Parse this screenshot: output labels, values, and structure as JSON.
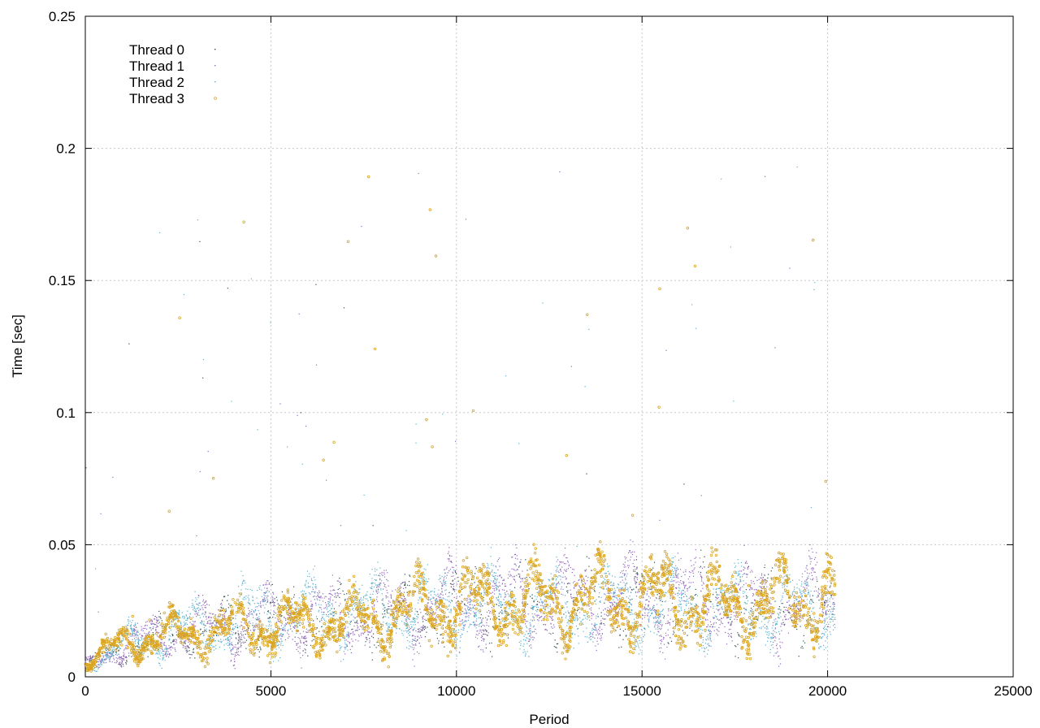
{
  "chart_data": {
    "type": "scatter",
    "title": "",
    "xlabel": "Period",
    "ylabel": "Time [sec]",
    "xlim": [
      0,
      25000
    ],
    "ylim": [
      0,
      0.25
    ],
    "xticks": [
      "0",
      "5000",
      "10000",
      "15000",
      "20000",
      "25000"
    ],
    "yticks": [
      "0",
      "0.05",
      "0.1",
      "0.15",
      "0.2",
      "0.25"
    ],
    "grid": true,
    "legend_position": "top-left",
    "series": [
      {
        "name": "Thread 0",
        "color": "#2f4f4f",
        "x": [
          0,
          1000,
          2500,
          5000,
          7500,
          10000,
          12500,
          15000,
          17500,
          20200
        ],
        "y": [
          0.004,
          0.011,
          0.016,
          0.021,
          0.022,
          0.026,
          0.027,
          0.028,
          0.027,
          0.025
        ]
      },
      {
        "name": "Thread 1",
        "color": "#9467bd",
        "x": [
          0,
          1000,
          2500,
          5000,
          7500,
          10000,
          12500,
          15000,
          17500,
          20200
        ],
        "y": [
          0.004,
          0.012,
          0.017,
          0.022,
          0.024,
          0.028,
          0.03,
          0.03,
          0.029,
          0.027
        ]
      },
      {
        "name": "Thread 2",
        "color": "#5bb2cf",
        "x": [
          0,
          1000,
          2500,
          5000,
          7500,
          10000,
          12500,
          15000,
          17500,
          20200
        ],
        "y": [
          0.004,
          0.012,
          0.018,
          0.024,
          0.025,
          0.027,
          0.026,
          0.027,
          0.026,
          0.025
        ]
      },
      {
        "name": "Thread 3",
        "color": "#daa520",
        "x": [
          0,
          1000,
          2500,
          5000,
          7500,
          10000,
          12500,
          15000,
          17500,
          20200
        ],
        "y": [
          0.005,
          0.013,
          0.016,
          0.02,
          0.021,
          0.028,
          0.028,
          0.03,
          0.027,
          0.03
        ]
      }
    ]
  }
}
